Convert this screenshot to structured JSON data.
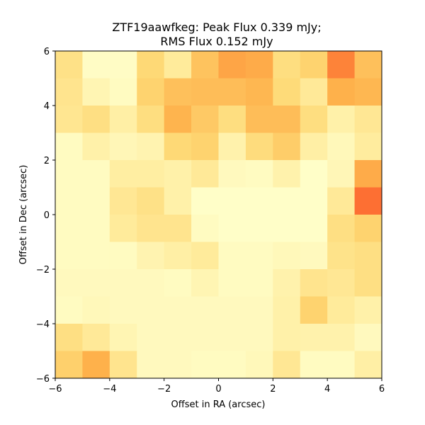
{
  "chart_data": {
    "type": "heatmap",
    "title_lines": [
      "ZTF19aawfkeg: Peak Flux 0.339 mJy;",
      "RMS Flux 0.152 mJy"
    ],
    "xlabel": "Offset in RA (arcsec)",
    "ylabel": "Offset in Dec (arcsec)",
    "xlim": [
      -6,
      6
    ],
    "ylim": [
      -6,
      6
    ],
    "x_ticks": [
      -6,
      -4,
      -2,
      0,
      2,
      4,
      6
    ],
    "y_ticks": [
      -6,
      -4,
      -2,
      0,
      2,
      4,
      6
    ],
    "x_tick_labels": [
      "−6",
      "−4",
      "−2",
      "0",
      "2",
      "4",
      "6"
    ],
    "y_tick_labels": [
      "−6",
      "−4",
      "−2",
      "0",
      "2",
      "4",
      "6"
    ],
    "grid": false,
    "colormap": "YlOrRd",
    "cell_size_arcsec": 1,
    "rows_order": "top-to-bottom (Dec 6 to -6)",
    "cols_order": "left-to-right (RA -6 to 6)",
    "intensity": [
      [
        0.2,
        0.02,
        0.02,
        0.25,
        0.14,
        0.32,
        0.42,
        0.4,
        0.22,
        0.27,
        0.52,
        0.33
      ],
      [
        0.18,
        0.07,
        0.03,
        0.27,
        0.33,
        0.34,
        0.34,
        0.36,
        0.24,
        0.15,
        0.38,
        0.36
      ],
      [
        0.17,
        0.21,
        0.11,
        0.22,
        0.37,
        0.3,
        0.22,
        0.34,
        0.34,
        0.22,
        0.1,
        0.16
      ],
      [
        0.03,
        0.1,
        0.06,
        0.08,
        0.25,
        0.27,
        0.09,
        0.23,
        0.29,
        0.11,
        0.05,
        0.13
      ],
      [
        0.03,
        0.03,
        0.12,
        0.12,
        0.1,
        0.15,
        0.04,
        0.03,
        0.09,
        0.01,
        0.06,
        0.4
      ],
      [
        0.03,
        0.03,
        0.16,
        0.2,
        0.1,
        0.01,
        0.01,
        0.01,
        0.01,
        0.01,
        0.15,
        0.56
      ],
      [
        0.03,
        0.03,
        0.14,
        0.18,
        0.18,
        0.03,
        0.01,
        0.01,
        0.01,
        0.01,
        0.21,
        0.27
      ],
      [
        0.03,
        0.03,
        0.03,
        0.08,
        0.11,
        0.14,
        0.03,
        0.03,
        0.05,
        0.04,
        0.19,
        0.21
      ],
      [
        0.04,
        0.04,
        0.04,
        0.04,
        0.03,
        0.07,
        0.03,
        0.03,
        0.09,
        0.18,
        0.16,
        0.21
      ],
      [
        0.03,
        0.05,
        0.04,
        0.04,
        0.04,
        0.04,
        0.04,
        0.04,
        0.1,
        0.27,
        0.14,
        0.1
      ],
      [
        0.21,
        0.15,
        0.07,
        0.04,
        0.04,
        0.04,
        0.04,
        0.04,
        0.1,
        0.09,
        0.09,
        0.04
      ],
      [
        0.28,
        0.38,
        0.18,
        0.04,
        0.04,
        0.03,
        0.03,
        0.05,
        0.16,
        0.03,
        0.03,
        0.11
      ]
    ]
  }
}
